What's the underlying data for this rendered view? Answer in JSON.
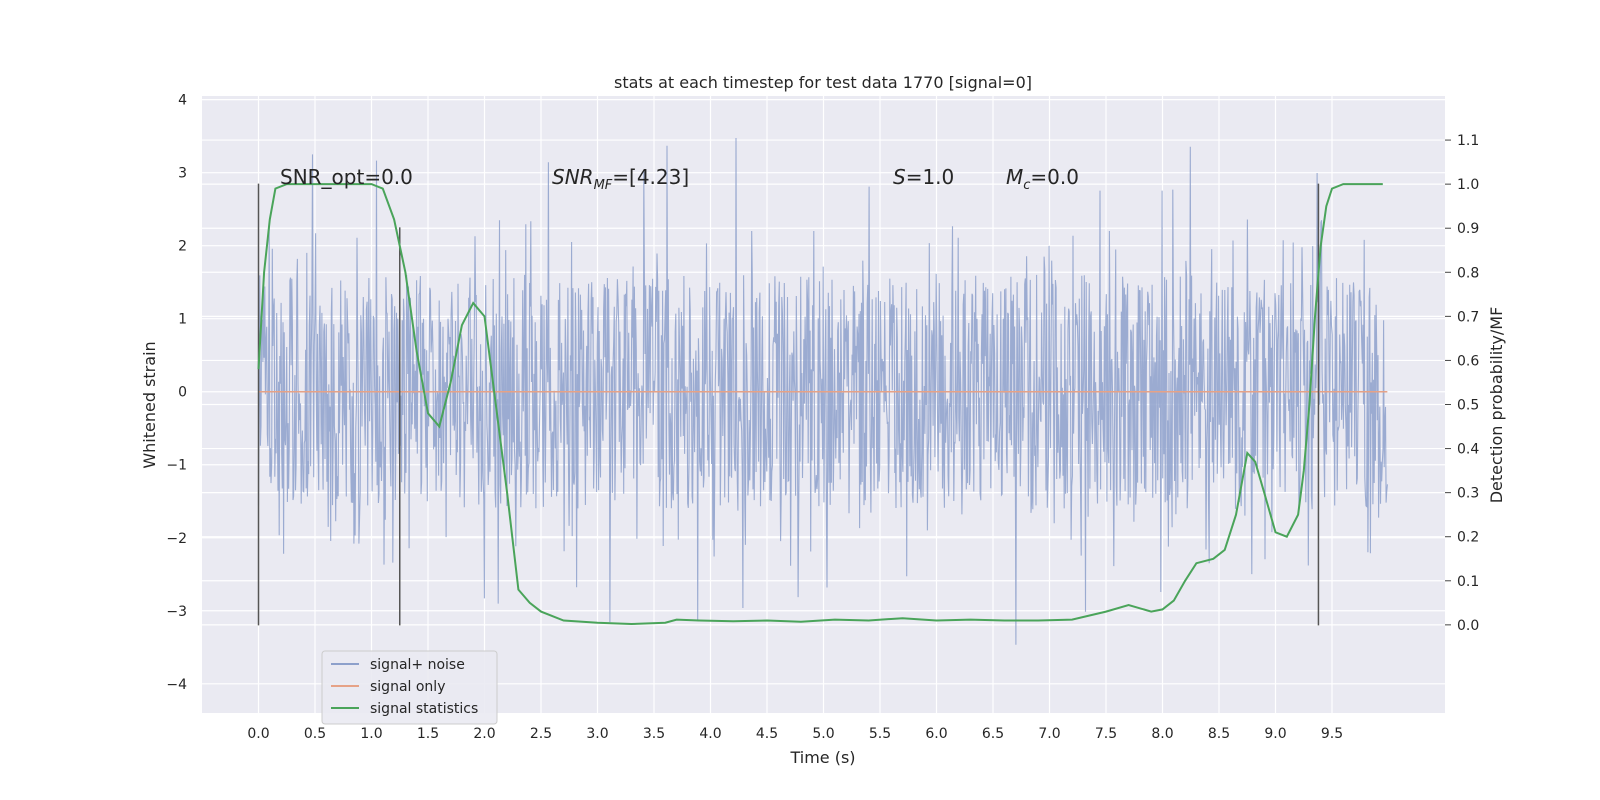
{
  "chart_data": {
    "type": "line",
    "title": "stats at each timestep for test data 1770 [signal=0]",
    "xlabel": "Time (s)",
    "ylabel_left": "Whitened strain",
    "ylabel_right": "Detection probability/MF",
    "xlim": [
      -0.5,
      10.5
    ],
    "ylim_left": [
      -4.4,
      4.05
    ],
    "ylim_right": [
      -0.2,
      1.2
    ],
    "x_ticks": [
      "0.0",
      "0.5",
      "1.0",
      "1.5",
      "2.0",
      "2.5",
      "3.0",
      "3.5",
      "4.0",
      "4.5",
      "5.0",
      "5.5",
      "6.0",
      "6.5",
      "7.0",
      "7.5",
      "8.0",
      "8.5",
      "9.0",
      "9.5"
    ],
    "y_ticks_left": [
      "−4",
      "−3",
      "−2",
      "−1",
      "0",
      "1",
      "2",
      "3",
      "4"
    ],
    "y_ticks_right": [
      "0.0",
      "0.1",
      "0.2",
      "0.3",
      "0.4",
      "0.5",
      "0.6",
      "0.7",
      "0.8",
      "0.9",
      "1.0",
      "1.1"
    ],
    "grid": true,
    "legend_position": "lower-left",
    "annotations": {
      "snr_opt": "SNR_opt=0.0",
      "snr_mf_base": "SNR",
      "snr_mf_sub": "MF",
      "snr_mf_value": "=[4.23]",
      "s_sym": "S",
      "s_value": "=1.0",
      "mc_base": "M",
      "mc_sub": "c",
      "mc_value": "=0.0"
    },
    "vertical_markers": [
      {
        "x": 0.0,
        "y_range": [
          -3.2,
          2.85
        ]
      },
      {
        "x": 1.25,
        "y_range": [
          -3.2,
          2.25
        ]
      },
      {
        "x": 9.38,
        "y_range": [
          -3.2,
          2.85
        ]
      }
    ],
    "noise_spec": {
      "x_range": [
        0.0,
        9.99
      ],
      "typical_band": [
        -1.5,
        1.6
      ],
      "peak_max": 3.7,
      "peak_min": -3.85
    },
    "series": [
      {
        "name": "signal+ noise",
        "color": "#8da0cb",
        "style": "noise"
      },
      {
        "name": "signal only",
        "color": "#e6a287",
        "x": [
          0.0,
          9.99
        ],
        "y": [
          0.0,
          0.0
        ]
      },
      {
        "name": "signal statistics",
        "color": "#4aa45a",
        "axis": "right",
        "x": [
          0.0,
          0.05,
          0.1,
          0.15,
          0.25,
          0.4,
          0.6,
          0.8,
          1.0,
          1.1,
          1.2,
          1.3,
          1.4,
          1.5,
          1.6,
          1.7,
          1.8,
          1.9,
          2.0,
          2.1,
          2.2,
          2.3,
          2.4,
          2.5,
          2.7,
          3.0,
          3.3,
          3.6,
          3.7,
          3.9,
          4.2,
          4.5,
          4.8,
          5.1,
          5.4,
          5.7,
          6.0,
          6.3,
          6.6,
          6.9,
          7.2,
          7.5,
          7.7,
          7.9,
          8.0,
          8.1,
          8.2,
          8.3,
          8.45,
          8.55,
          8.65,
          8.75,
          8.82,
          8.9,
          9.0,
          9.1,
          9.2,
          9.25,
          9.3,
          9.35,
          9.4,
          9.45,
          9.5,
          9.6,
          9.7,
          9.8,
          9.95
        ],
        "y": [
          0.58,
          0.8,
          0.92,
          0.99,
          1.0,
          1.0,
          1.0,
          1.0,
          1.0,
          0.99,
          0.92,
          0.8,
          0.62,
          0.48,
          0.45,
          0.55,
          0.68,
          0.73,
          0.7,
          0.5,
          0.3,
          0.08,
          0.05,
          0.03,
          0.01,
          0.005,
          0.002,
          0.005,
          0.012,
          0.01,
          0.008,
          0.01,
          0.007,
          0.012,
          0.01,
          0.015,
          0.01,
          0.012,
          0.01,
          0.01,
          0.012,
          0.03,
          0.045,
          0.03,
          0.035,
          0.055,
          0.1,
          0.14,
          0.15,
          0.17,
          0.25,
          0.39,
          0.37,
          0.3,
          0.21,
          0.2,
          0.25,
          0.35,
          0.5,
          0.7,
          0.86,
          0.95,
          0.99,
          1.0,
          1.0,
          1.0,
          1.0
        ]
      }
    ]
  }
}
